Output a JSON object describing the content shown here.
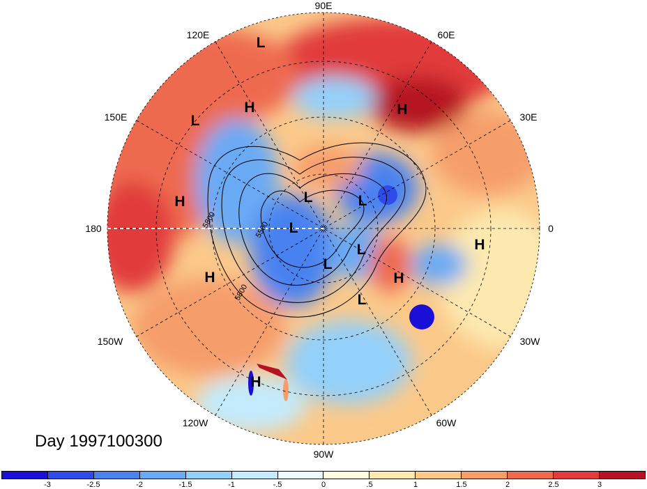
{
  "title": "Day 1997100300",
  "longitude_labels": [
    {
      "id": "90e",
      "text": "90E"
    },
    {
      "id": "60e",
      "text": "60E"
    },
    {
      "id": "120e",
      "text": "120E"
    },
    {
      "id": "150e",
      "text": "150E"
    },
    {
      "id": "30e",
      "text": "30E"
    },
    {
      "id": "180",
      "text": "180"
    },
    {
      "id": "0",
      "text": "0"
    },
    {
      "id": "150w",
      "text": "150W"
    },
    {
      "id": "30w",
      "text": "30W"
    },
    {
      "id": "120w",
      "text": "120W"
    },
    {
      "id": "60w",
      "text": "60W"
    },
    {
      "id": "90w",
      "text": "90W"
    }
  ],
  "pressure_centers": [
    "L",
    "H",
    "H",
    "L",
    "H",
    "L",
    "L",
    "L",
    "L",
    "L",
    "H",
    "H",
    "L",
    "H",
    "H",
    "L",
    "L"
  ],
  "contour_labels": [
    "5800",
    "5500",
    "5800"
  ],
  "colorbar": {
    "colors": [
      "#1a0fd6",
      "#2f4be8",
      "#4a82f0",
      "#6aaaf5",
      "#93d0fa",
      "#c3ebfd",
      "#eafaff",
      "#fffbe0",
      "#fde9b0",
      "#fbc98a",
      "#f69d6c",
      "#ee6a4f",
      "#e13b3b",
      "#b51224"
    ],
    "ticks": [
      "-3",
      "-2.5",
      "-2",
      "-1.5",
      "-1",
      "-.5",
      "0",
      ".5",
      "1",
      "1.5",
      "2",
      "2.5",
      "3"
    ]
  }
}
